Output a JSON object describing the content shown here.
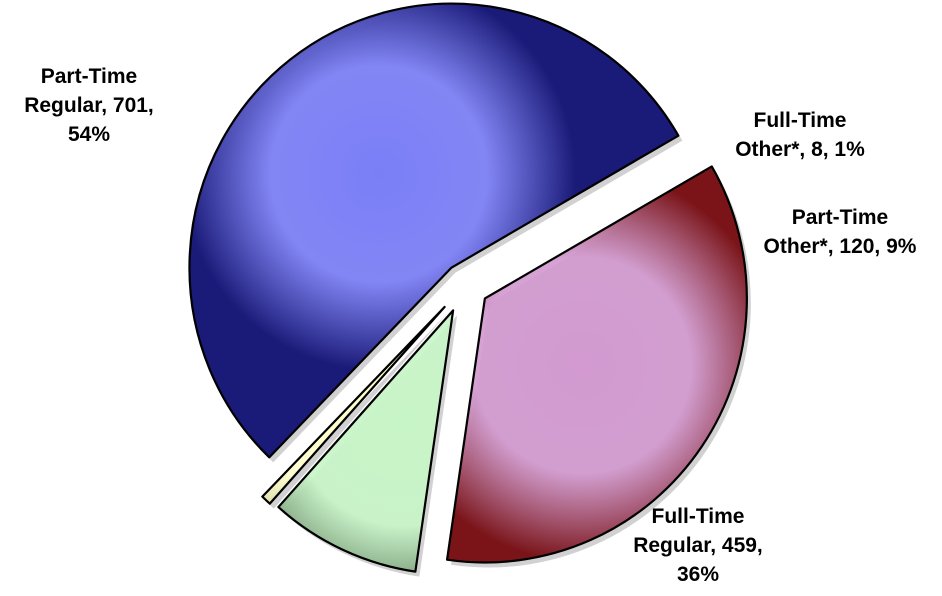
{
  "chart_data": {
    "type": "pie",
    "title": "",
    "legend": "none",
    "slices": [
      {
        "key": "pt_regular",
        "category": "Part-Time Regular",
        "value": 701,
        "percent": "54%",
        "color": "#7b7ff7",
        "dark": "#1a1a78",
        "label_lines": [
          "Part-Time",
          "Regular, 701,",
          "54%"
        ]
      },
      {
        "key": "ft_other",
        "category": "Full-Time Other*",
        "value": 8,
        "percent": "1%",
        "color": "#ffffcc",
        "dark": "#b8b888",
        "label_lines": [
          "Full-Time",
          "Other*, 8, 1%"
        ]
      },
      {
        "key": "pt_other",
        "category": "Part-Time Other*",
        "value": 120,
        "percent": "9%",
        "color": "#c8f5c8",
        "dark": "#4f6e4f",
        "label_lines": [
          "Part-Time",
          "Other*, 120, 9%"
        ]
      },
      {
        "key": "ft_regular",
        "category": "Full-Time Regular",
        "value": 459,
        "percent": "36%",
        "color": "#d29ad0",
        "dark": "#7a1418",
        "label_lines": [
          "Full-Time",
          "Regular, 459,",
          "36%"
        ]
      }
    ]
  }
}
